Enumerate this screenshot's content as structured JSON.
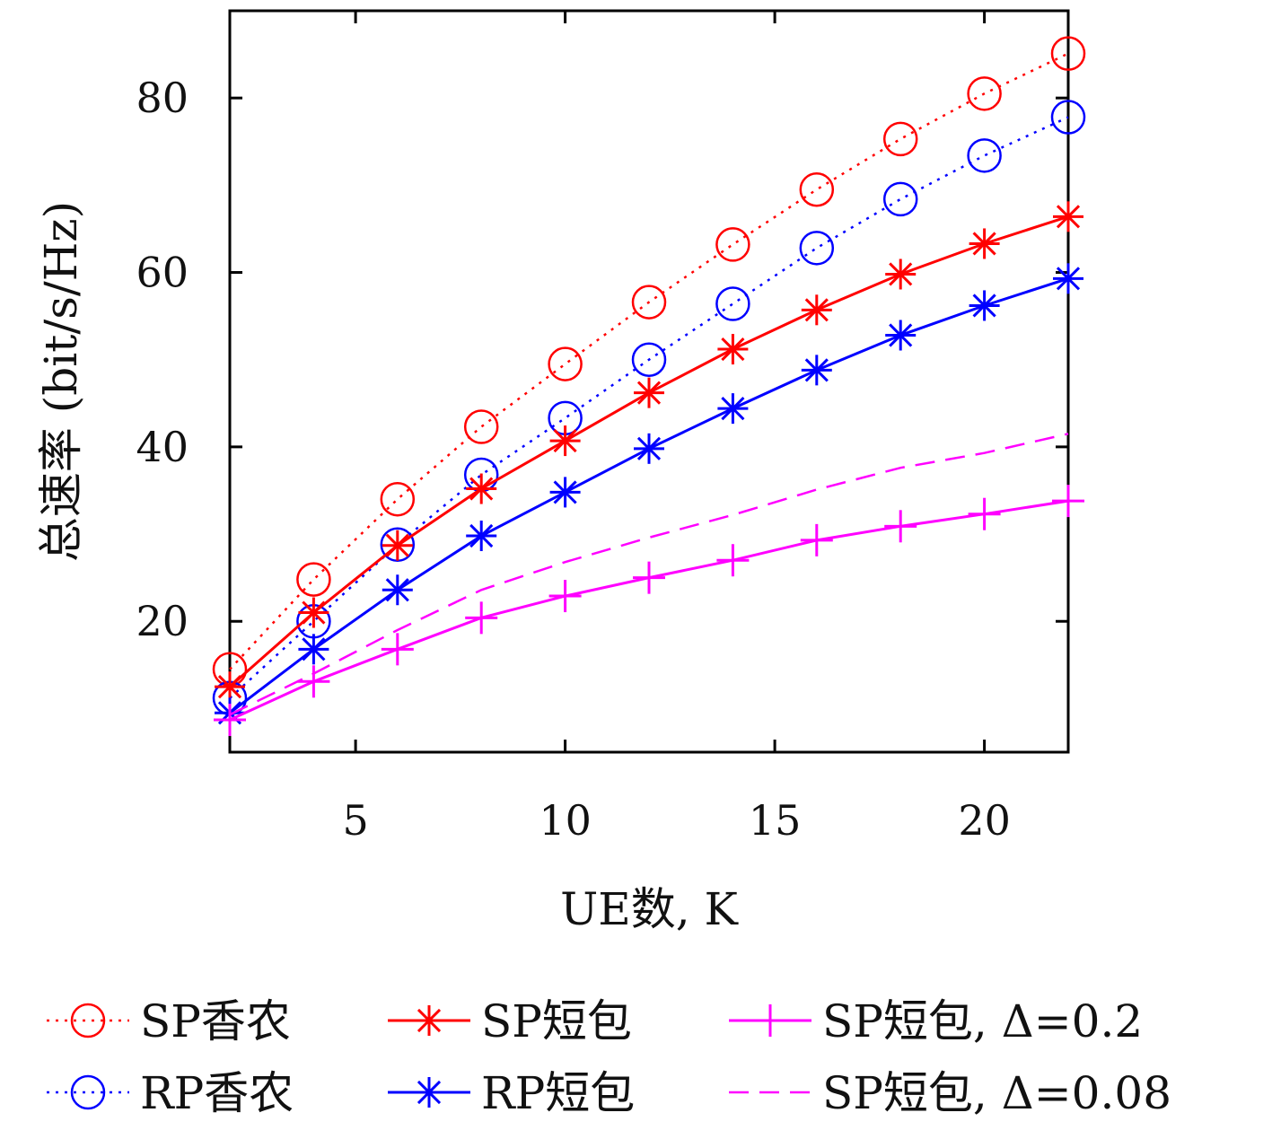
{
  "chart_data": {
    "type": "line",
    "xlabel": "UE数, K",
    "ylabel": "总速率 (bit/s/Hz)",
    "xlim": [
      2,
      22
    ],
    "ylim": [
      5,
      90
    ],
    "xticks": [
      5,
      10,
      15,
      20
    ],
    "yticks": [
      20,
      40,
      60,
      80
    ],
    "x": [
      2,
      4,
      6,
      8,
      10,
      12,
      14,
      16,
      18,
      20,
      22
    ],
    "grid": false,
    "legend_placement": "bottom",
    "series": [
      {
        "name": "SP香农",
        "color": "#ff0000",
        "line": "dotted",
        "marker": "circle",
        "values": [
          14.5,
          24.8,
          34.0,
          42.3,
          49.5,
          56.6,
          63.2,
          69.5,
          75.3,
          80.5,
          85.1
        ]
      },
      {
        "name": "RP香农",
        "color": "#0000ff",
        "line": "dotted",
        "marker": "circle",
        "values": [
          11.2,
          20.0,
          28.8,
          36.8,
          43.3,
          50.0,
          56.4,
          62.8,
          68.4,
          73.4,
          77.8
        ]
      },
      {
        "name": "SP短包",
        "color": "#ff0000",
        "line": "solid",
        "marker": "star",
        "values": [
          12.5,
          21.0,
          28.7,
          35.2,
          40.7,
          46.2,
          51.2,
          55.7,
          59.8,
          63.3,
          66.4
        ]
      },
      {
        "name": "RP短包",
        "color": "#0000ff",
        "line": "solid",
        "marker": "star",
        "values": [
          9.5,
          16.8,
          23.6,
          29.8,
          34.8,
          39.8,
          44.4,
          48.8,
          52.8,
          56.2,
          59.3
        ]
      },
      {
        "name": "SP短包, Δ=0.2",
        "color": "#ff00ff",
        "line": "solid",
        "marker": "plus",
        "values": [
          8.7,
          13.1,
          16.8,
          20.4,
          22.9,
          25.0,
          27.0,
          29.3,
          30.9,
          32.3,
          33.8
        ]
      },
      {
        "name": "SP短包, Δ=0.08",
        "color": "#ff00ff",
        "line": "dashed",
        "marker": "none",
        "values": [
          9.3,
          14.0,
          19.0,
          23.6,
          26.8,
          29.6,
          32.2,
          35.1,
          37.6,
          39.3,
          41.5
        ]
      }
    ]
  }
}
